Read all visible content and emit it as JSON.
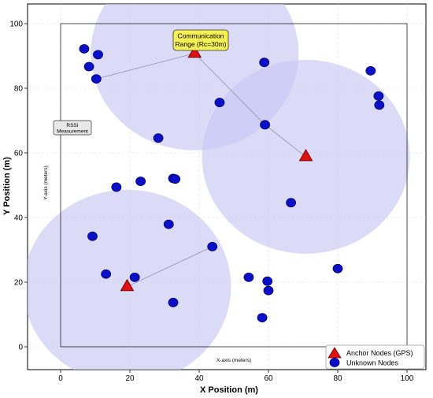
{
  "chart_data": {
    "type": "scatter",
    "title": "",
    "xlabel": "X Position (m)",
    "ylabel": "Y Position (m)",
    "xlim": [
      -8,
      105
    ],
    "ylim": [
      -8,
      103
    ],
    "xticks": [
      0,
      20,
      40,
      60,
      80,
      100
    ],
    "yticks": [
      0,
      20,
      40,
      60,
      80,
      100
    ],
    "grid": true,
    "legend_position": "bottom-right",
    "series": [
      {
        "name": "Anchor Nodes (GPS)",
        "marker": "triangle",
        "color": "#dd1111",
        "points": [
          {
            "x": 38.7,
            "y": 90.8
          },
          {
            "x": 70.8,
            "y": 58.8
          },
          {
            "x": 19.2,
            "y": 18.6
          }
        ]
      },
      {
        "name": "Unknown Nodes",
        "marker": "circle",
        "color": "#0a10c8",
        "points": [
          {
            "x": 6.8,
            "y": 92.2
          },
          {
            "x": 10.8,
            "y": 90.4
          },
          {
            "x": 8.2,
            "y": 86.7
          },
          {
            "x": 10.3,
            "y": 82.9
          },
          {
            "x": 58.8,
            "y": 88.0
          },
          {
            "x": 89.5,
            "y": 85.4
          },
          {
            "x": 91.8,
            "y": 77.6
          },
          {
            "x": 92.0,
            "y": 74.8
          },
          {
            "x": 45.9,
            "y": 75.6
          },
          {
            "x": 59.0,
            "y": 68.7
          },
          {
            "x": 28.2,
            "y": 64.6
          },
          {
            "x": 32.5,
            "y": 52.1
          },
          {
            "x": 33.1,
            "y": 51.9
          },
          {
            "x": 23.1,
            "y": 51.2
          },
          {
            "x": 16.1,
            "y": 49.4
          },
          {
            "x": 66.5,
            "y": 44.6
          },
          {
            "x": 31.2,
            "y": 37.9
          },
          {
            "x": 9.2,
            "y": 34.2
          },
          {
            "x": 43.8,
            "y": 31.0
          },
          {
            "x": 13.1,
            "y": 22.5
          },
          {
            "x": 21.4,
            "y": 21.5
          },
          {
            "x": 54.3,
            "y": 21.5
          },
          {
            "x": 59.7,
            "y": 20.3
          },
          {
            "x": 60.0,
            "y": 17.4
          },
          {
            "x": 80.0,
            "y": 24.2
          },
          {
            "x": 32.5,
            "y": 13.7
          },
          {
            "x": 58.2,
            "y": 9.0
          }
        ]
      }
    ],
    "coverage_circles": [
      {
        "cx": 38.7,
        "cy": 90.8,
        "r": 30
      },
      {
        "cx": 70.8,
        "cy": 58.8,
        "r": 30
      },
      {
        "cx": 19.2,
        "cy": 18.6,
        "r": 30
      }
    ],
    "deployment_area": {
      "x0": 0,
      "y0": 0,
      "x1": 100,
      "y1": 100
    },
    "links": [
      {
        "from": [
          38.7,
          90.8
        ],
        "to": [
          10.3,
          82.9
        ]
      },
      {
        "from": [
          38.7,
          90.8
        ],
        "to": [
          59.0,
          68.7
        ]
      },
      {
        "from": [
          59.0,
          68.7
        ],
        "to": [
          70.8,
          58.8
        ]
      },
      {
        "from": [
          19.2,
          18.6
        ],
        "to": [
          43.8,
          31.0
        ]
      }
    ],
    "annotations": {
      "comm_range_line1": "Communication",
      "comm_range_line2": "Range (Rc=30m)",
      "rssi_line1": "RSSI",
      "rssi_line2": "Measurement",
      "inner_ylabel": "Y-axis (meters)",
      "inner_xlabel": "X-axis (meters)"
    },
    "colors": {
      "circle_fill": "#c8c8f5",
      "callout_fill": "#f5f053",
      "grid": "#dcdcdc"
    }
  }
}
